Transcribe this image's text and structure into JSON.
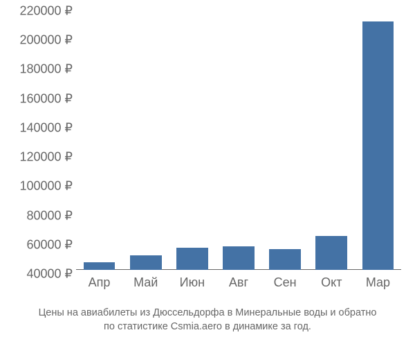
{
  "chart": {
    "type": "bar",
    "categories": [
      "Апр",
      "Май",
      "Июн",
      "Авг",
      "Сен",
      "Окт",
      "Мар"
    ],
    "values": [
      45000,
      50000,
      55000,
      56000,
      54000,
      63000,
      210000
    ],
    "bar_color": "#4472a5",
    "bar_width_ratio": 0.68,
    "y_baseline": 40000,
    "ylim": [
      40000,
      220000
    ],
    "ytick_step": 20000,
    "yticks": [
      40000,
      60000,
      80000,
      100000,
      120000,
      140000,
      160000,
      180000,
      200000,
      220000
    ],
    "currency_symbol": "₽",
    "axis_label_color": "#666666",
    "axis_label_fontsize": 18,
    "background_color": "#ffffff"
  },
  "caption": {
    "line1": "Цены на авиабилеты из Дюссельдорфа в Минеральные воды и обратно",
    "line2": "по статистике Csmia.aero в динамике за год.",
    "color": "#666666",
    "fontsize": 14.5
  }
}
